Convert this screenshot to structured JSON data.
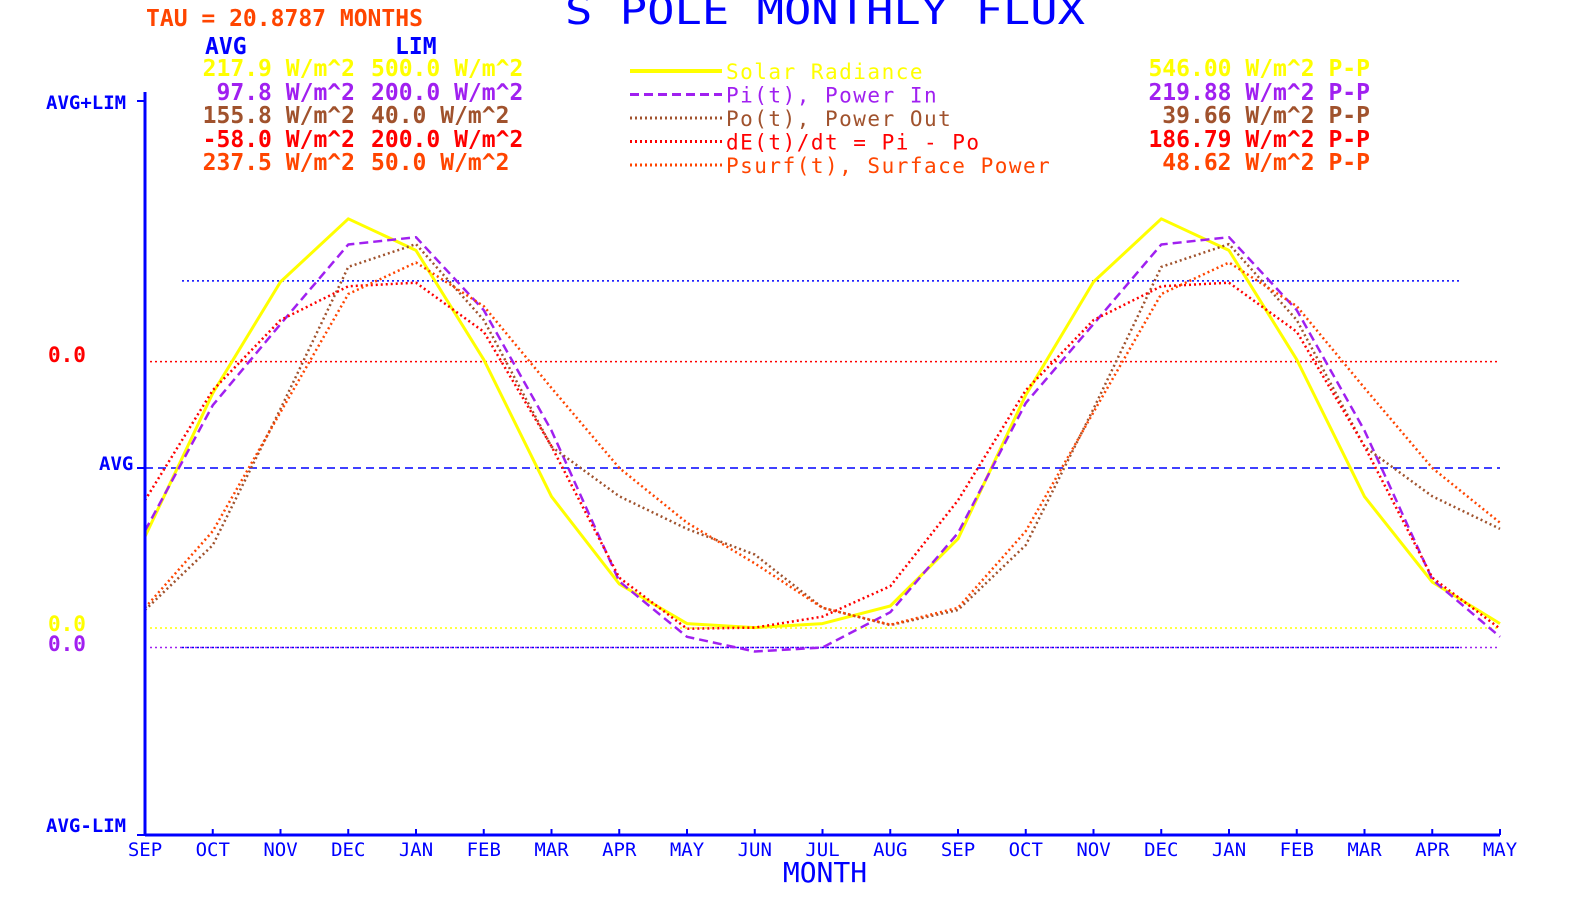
{
  "title": "S POLE MONTHLY FLUX",
  "tau_label": "TAU = 20.8787 MONTHS",
  "col_headers": {
    "avg": "AVG",
    "lim": "LIM"
  },
  "stats": [
    {
      "avg": "217.9 W/m^2",
      "lim": "500.0 W/m^2",
      "pp": "546.00 W/m^2 P-P",
      "color": "#ffff00"
    },
    {
      "avg": "97.8 W/m^2",
      "lim": "200.0 W/m^2",
      "pp": "219.88 W/m^2 P-P",
      "color": "#a020f0"
    },
    {
      "avg": "155.8 W/m^2",
      "lim": "40.0 W/m^2",
      "pp": "39.66 W/m^2 P-P",
      "color": "#a0522d"
    },
    {
      "avg": "-58.0 W/m^2",
      "lim": "200.0 W/m^2",
      "pp": "186.79 W/m^2 P-P",
      "color": "#ff0000"
    },
    {
      "avg": "237.5 W/m^2",
      "lim": "50.0 W/m^2",
      "pp": "48.62 W/m^2 P-P",
      "color": "#ff4500"
    }
  ],
  "y_labels": {
    "top": "AVG+LIM",
    "avg": "AVG",
    "bottom": "AVG-LIM",
    "zero": "0.0"
  },
  "chart_data": {
    "type": "line",
    "title": "S POLE MONTHLY FLUX",
    "xlabel": "MONTH",
    "x": [
      "SEP",
      "OCT",
      "NOV",
      "DEC",
      "JAN",
      "FEB",
      "MAR",
      "APR",
      "MAY",
      "JUN",
      "JUL",
      "AUG",
      "SEP",
      "OCT",
      "NOV",
      "DEC",
      "JAN",
      "FEB",
      "MAR",
      "APR",
      "MAY"
    ],
    "ylim": [
      -1,
      1
    ],
    "series": [
      {
        "name": "Solar Radiance",
        "color": "#ffff00",
        "dash": "solid",
        "avg": 217.9,
        "lim": 500.0,
        "values": [
          -0.187,
          0.204,
          0.507,
          0.679,
          0.593,
          0.295,
          -0.078,
          -0.316,
          -0.424,
          -0.435,
          -0.424,
          -0.376,
          -0.193,
          0.199,
          0.507,
          0.679,
          0.593,
          0.295,
          -0.078,
          -0.311,
          -0.424
        ]
      },
      {
        "name": "Pi(t), Power In",
        "color": "#a020f0",
        "dash": "dashed",
        "avg": 97.8,
        "lim": 200.0,
        "values": [
          -0.171,
          0.171,
          0.392,
          0.609,
          0.629,
          0.43,
          0.102,
          -0.309,
          -0.46,
          -0.5,
          -0.489,
          -0.393,
          -0.177,
          0.177,
          0.392,
          0.609,
          0.629,
          0.43,
          0.102,
          -0.304,
          -0.46
        ]
      },
      {
        "name": "Po(t), Power Out",
        "color": "#a0522d",
        "dash": "dotted",
        "avg": 155.8,
        "lim": 40.0,
        "values": [
          -0.387,
          -0.21,
          0.161,
          0.548,
          0.61,
          0.403,
          0.058,
          -0.077,
          -0.166,
          -0.236,
          -0.381,
          -0.428,
          -0.387,
          -0.21,
          0.161,
          0.548,
          0.61,
          0.403,
          0.058,
          -0.077,
          -0.166
        ]
      },
      {
        "name": "dE(t)/dt = Pi - Po",
        "color": "#ff0000",
        "dash": "dotted",
        "avg": -58.0,
        "lim": 200.0,
        "values": [
          -0.088,
          0.212,
          0.403,
          0.495,
          0.505,
          0.371,
          0.059,
          -0.299,
          -0.438,
          -0.435,
          -0.405,
          -0.322,
          -0.088,
          0.212,
          0.403,
          0.495,
          0.505,
          0.371,
          0.059,
          -0.299,
          -0.438
        ]
      },
      {
        "name": "Psurf(t), Surface Power",
        "color": "#ff4500",
        "dash": "dotted",
        "avg": 237.5,
        "lim": 50.0,
        "values": [
          -0.381,
          -0.172,
          0.152,
          0.474,
          0.56,
          0.441,
          0.218,
          0.0,
          -0.149,
          -0.26,
          -0.381,
          -0.427,
          -0.381,
          -0.172,
          0.152,
          0.474,
          0.56,
          0.441,
          0.218,
          0.0,
          -0.149
        ]
      }
    ],
    "reference_lines": [
      {
        "name": "Solar Radiance zero",
        "color": "#ffff00",
        "value": -0.4358,
        "label": "0.0"
      },
      {
        "name": "Pi zero",
        "color": "#a020f0",
        "value": -0.489,
        "label": "0.0"
      },
      {
        "name": "dE/dt zero",
        "color": "#ff0000",
        "value": 0.29,
        "label": "0.0"
      },
      {
        "name": "upper dotted blue",
        "color": "#0000ff",
        "value": 0.51
      },
      {
        "name": "lower dotted blue",
        "color": "#0000ff",
        "value": -0.489
      }
    ]
  }
}
